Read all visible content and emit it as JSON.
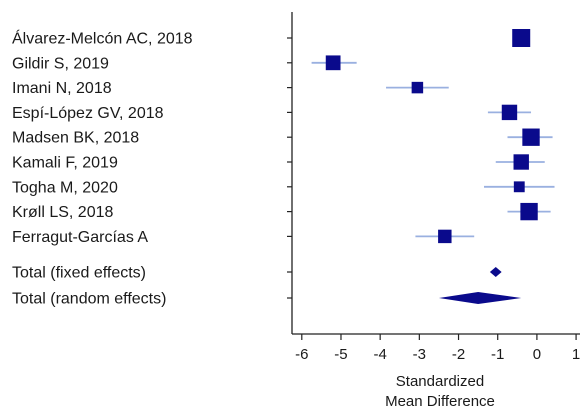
{
  "chart_data": {
    "type": "forest",
    "xlabel_lines": [
      "Standardized",
      "Mean Difference"
    ],
    "xlim": [
      -6.25,
      1.1
    ],
    "xticks": [
      -6,
      -5,
      -4,
      -3,
      -2,
      -1,
      0,
      1
    ],
    "marker_color": "#0a0a8c",
    "ci_color": "#9ab0e0",
    "studies": [
      {
        "label": "Álvarez-Melcón AC, 2018",
        "estimate": -0.4,
        "ci": [
          -0.6,
          -0.2
        ],
        "weight": 1.0
      },
      {
        "label": "Gildir S, 2019",
        "estimate": -5.2,
        "ci": [
          -5.75,
          -4.6
        ],
        "weight": 0.75
      },
      {
        "label": "Imani N, 2018",
        "estimate": -3.05,
        "ci": [
          -3.85,
          -2.25
        ],
        "weight": 0.5
      },
      {
        "label": "Espí-López GV, 2018",
        "estimate": -0.7,
        "ci": [
          -1.25,
          -0.15
        ],
        "weight": 0.8
      },
      {
        "label": "Madsen BK, 2018",
        "estimate": -0.15,
        "ci": [
          -0.75,
          0.4
        ],
        "weight": 0.95
      },
      {
        "label": "Kamali F, 2019",
        "estimate": -0.4,
        "ci": [
          -1.05,
          0.2
        ],
        "weight": 0.8
      },
      {
        "label": "Togha M, 2020",
        "estimate": -0.45,
        "ci": [
          -1.35,
          0.45
        ],
        "weight": 0.45
      },
      {
        "label": "Krøll LS, 2018",
        "estimate": -0.2,
        "ci": [
          -0.75,
          0.35
        ],
        "weight": 0.95
      },
      {
        "label": "Ferragut-Garcías A",
        "estimate": -2.35,
        "ci": [
          -3.1,
          -1.6
        ],
        "weight": 0.65
      }
    ],
    "totals": [
      {
        "label": "Total (fixed effects)",
        "estimate": -1.05,
        "ci": [
          -1.2,
          -0.9
        ]
      },
      {
        "label": "Total (random effects)",
        "estimate": -1.5,
        "ci": [
          -2.5,
          -0.4
        ]
      }
    ]
  }
}
